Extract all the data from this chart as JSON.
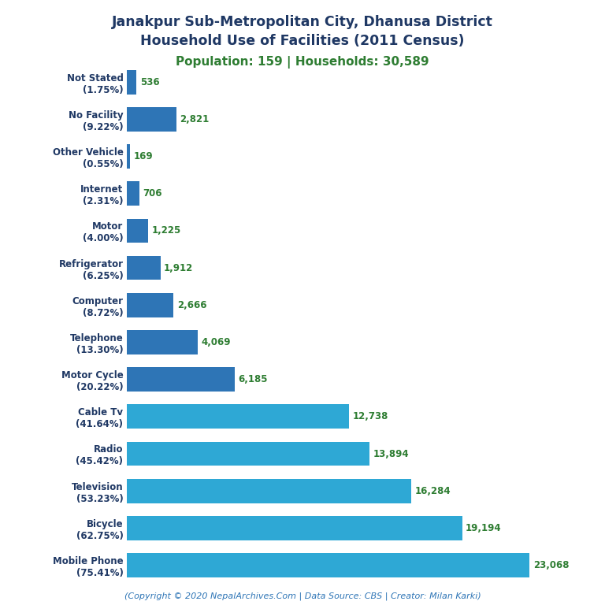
{
  "title_line1": "Janakpur Sub-Metropolitan City, Dhanusa District",
  "title_line2": "Household Use of Facilities (2011 Census)",
  "subtitle": "Population: 159 | Households: 30,589",
  "footer": "(Copyright © 2020 NepalArchives.Com | Data Source: CBS | Creator: Milan Karki)",
  "categories": [
    "Not Stated\n(1.75%)",
    "No Facility\n(9.22%)",
    "Other Vehicle\n(0.55%)",
    "Internet\n(2.31%)",
    "Motor\n(4.00%)",
    "Refrigerator\n(6.25%)",
    "Computer\n(8.72%)",
    "Telephone\n(13.30%)",
    "Motor Cycle\n(20.22%)",
    "Cable Tv\n(41.64%)",
    "Radio\n(45.42%)",
    "Television\n(53.23%)",
    "Bicycle\n(62.75%)",
    "Mobile Phone\n(75.41%)"
  ],
  "values": [
    536,
    2821,
    169,
    706,
    1225,
    1912,
    2666,
    4069,
    6185,
    12738,
    13894,
    16284,
    19194,
    23068
  ],
  "value_labels": [
    "536",
    "2,821",
    "169",
    "706",
    "1,225",
    "1,912",
    "2,666",
    "4,069",
    "6,185",
    "12,738",
    "13,894",
    "16,284",
    "19,194",
    "23,068"
  ],
  "bar_color_small": "#2e75b6",
  "bar_color_large": "#2ea8d5",
  "title_color": "#1f3864",
  "subtitle_color": "#2e7d32",
  "value_color": "#2e7d32",
  "footer_color": "#2e75b6",
  "background_color": "#ffffff",
  "title_fontsize": 12.5,
  "subtitle_fontsize": 11,
  "label_fontsize": 8.5,
  "value_fontsize": 8.5,
  "footer_fontsize": 8
}
